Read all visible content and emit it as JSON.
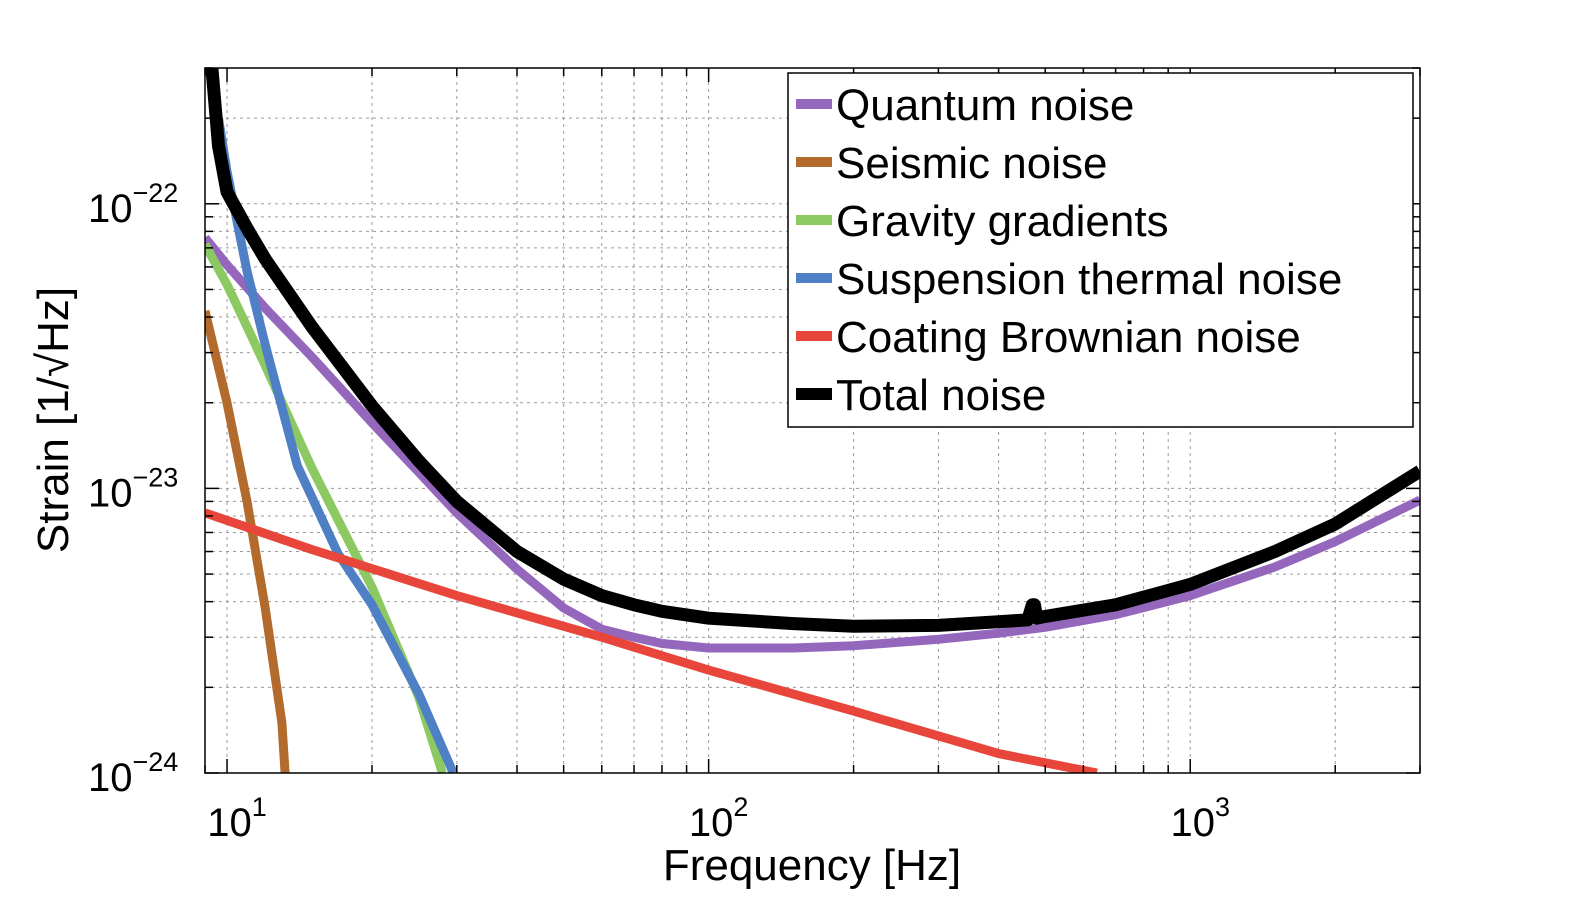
{
  "chart_data": {
    "type": "line",
    "title": "",
    "xlabel": "Frequency [Hz]",
    "ylabel": "Strain [1/√Hz]",
    "x_scale": "log",
    "y_scale": "log",
    "xlim": [
      9,
      3000
    ],
    "ylim": [
      1e-24,
      3e-22
    ],
    "grid": "major and minor, dotted",
    "legend_position": "top-right",
    "x_ticks": [
      {
        "value": 10,
        "base": "10",
        "exp": "1"
      },
      {
        "value": 100,
        "base": "10",
        "exp": "2"
      },
      {
        "value": 1000,
        "base": "10",
        "exp": "3"
      }
    ],
    "y_ticks": [
      {
        "value": 1e-22,
        "base": "10",
        "exp": "−22"
      },
      {
        "value": 1e-23,
        "base": "10",
        "exp": "−23"
      },
      {
        "value": 1e-24,
        "base": "10",
        "exp": "−24"
      }
    ],
    "series": [
      {
        "name": "Quantum noise",
        "color": "#9467bd",
        "width": 9,
        "x": [
          9,
          10,
          12,
          15,
          20,
          25,
          30,
          40,
          50,
          60,
          70,
          80,
          100,
          150,
          200,
          300,
          400,
          500,
          700,
          1000,
          1500,
          2000,
          3000
        ],
        "y": [
          7.6e-23,
          6.1e-23,
          4.3e-23,
          2.9e-23,
          1.7e-23,
          1.14e-23,
          8.2e-24,
          5.2e-24,
          3.8e-24,
          3.2e-24,
          3e-24,
          2.85e-24,
          2.75e-24,
          2.75e-24,
          2.8e-24,
          2.95e-24,
          3.1e-24,
          3.25e-24,
          3.6e-24,
          4.2e-24,
          5.3e-24,
          6.5e-24,
          9.1e-24
        ]
      },
      {
        "name": "Seismic noise",
        "color": "#b36b2d",
        "width": 9,
        "x": [
          9,
          10,
          11,
          12,
          13,
          13.2
        ],
        "y": [
          4.2e-23,
          2e-23,
          9e-24,
          3.8e-24,
          1.5e-24,
          1e-24
        ]
      },
      {
        "name": "Gravity gradients",
        "color": "#8cc963",
        "width": 9,
        "x": [
          9,
          10,
          11,
          12,
          15,
          20,
          25,
          28
        ],
        "y": [
          7.2e-23,
          5.2e-23,
          3.7e-23,
          2.7e-23,
          1.18e-23,
          4.5e-24,
          1.85e-24,
          1e-24
        ]
      },
      {
        "name": "Suspension thermal noise",
        "color": "#4f7fc4",
        "width": 9,
        "x": [
          9.6,
          10,
          11,
          12,
          14,
          17,
          20,
          25,
          29.5
        ],
        "y": [
          2e-22,
          1.3e-22,
          5.8e-23,
          3.2e-23,
          1.2e-23,
          5.9e-24,
          3.9e-24,
          1.9e-24,
          1e-24
        ]
      },
      {
        "name": "Coating Brownian noise",
        "color": "#e8463a",
        "width": 9,
        "x": [
          9,
          15,
          30,
          60,
          100,
          200,
          400,
          640
        ],
        "y": [
          8.2e-24,
          6.1e-24,
          4.2e-24,
          3e-24,
          2.3e-24,
          1.65e-24,
          1.17e-24,
          1e-24
        ]
      },
      {
        "name": "Total noise",
        "color": "#000000",
        "width": 13,
        "x": [
          9.3,
          9.6,
          10,
          11,
          12,
          15,
          20,
          25,
          30,
          40,
          50,
          60,
          70,
          80,
          100,
          150,
          200,
          300,
          400,
          460,
          470,
          475,
          480,
          500,
          700,
          1000,
          1500,
          2000,
          3000
        ],
        "y": [
          3e-22,
          1.6e-22,
          1.1e-22,
          8.2e-23,
          6.4e-23,
          3.7e-23,
          1.95e-23,
          1.25e-23,
          9e-24,
          6e-24,
          4.8e-24,
          4.2e-24,
          3.9e-24,
          3.7e-24,
          3.5e-24,
          3.35e-24,
          3.28e-24,
          3.3e-24,
          3.4e-24,
          3.45e-24,
          3.9e-24,
          3.9e-24,
          3.5e-24,
          3.55e-24,
          3.9e-24,
          4.6e-24,
          6e-24,
          7.5e-24,
          1.15e-23
        ]
      }
    ]
  }
}
